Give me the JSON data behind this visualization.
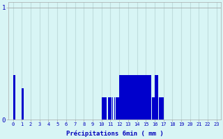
{
  "xlabel": "Précipitations 6min ( mm )",
  "background_color": "#d8f5f5",
  "bar_color": "#0000cc",
  "grid_color": "#c0dede",
  "ylim": [
    0,
    1.05
  ],
  "yticks": [
    0,
    1
  ],
  "xlim": [
    -0.5,
    23.5
  ],
  "values_6min": [
    0.4,
    0.4,
    0.4,
    0.0,
    0.0,
    0.0,
    0.0,
    0.0,
    0.0,
    0.0,
    0.28,
    0.28,
    0.0,
    0.0,
    0.0,
    0.0,
    0.0,
    0.0,
    0.0,
    0.0,
    0.0,
    0.0,
    0.0,
    0.0,
    0.0,
    0.0,
    0.0,
    0.0,
    0.0,
    0.0,
    0.0,
    0.0,
    0.0,
    0.0,
    0.0,
    0.0,
    0.0,
    0.0,
    0.0,
    0.0,
    0.0,
    0.0,
    0.0,
    0.0,
    0.0,
    0.0,
    0.0,
    0.0,
    0.0,
    0.0,
    0.0,
    0.0,
    0.0,
    0.0,
    0.0,
    0.0,
    0.0,
    0.0,
    0.0,
    0.0,
    0.0,
    0.0,
    0.0,
    0.0,
    0.0,
    0.0,
    0.0,
    0.0,
    0.0,
    0.0,
    0.0,
    0.0,
    0.0,
    0.0,
    0.0,
    0.0,
    0.0,
    0.0,
    0.0,
    0.0,
    0.0,
    0.0,
    0.0,
    0.0,
    0.0,
    0.0,
    0.0,
    0.0,
    0.0,
    0.0,
    0.0,
    0.0,
    0.0,
    0.0,
    0.0,
    0.0,
    0.0,
    0.0,
    0.0,
    0.0,
    0.2,
    0.2,
    0.2,
    0.2,
    0.2,
    0.2,
    0.0,
    0.2,
    0.2,
    0.2,
    0.2,
    0.0,
    0.2,
    0.0,
    0.2,
    0.0,
    0.2,
    0.2,
    0.2,
    0.2,
    0.4,
    0.4,
    0.4,
    0.4,
    0.4,
    0.4,
    0.4,
    0.4,
    0.4,
    0.4,
    0.4,
    0.4,
    0.4,
    0.4,
    0.4,
    0.4,
    0.4,
    0.4,
    0.4,
    0.4,
    0.4,
    0.4,
    0.4,
    0.4,
    0.4,
    0.4,
    0.4,
    0.4,
    0.4,
    0.4,
    0.4,
    0.4,
    0.4,
    0.4,
    0.4,
    0.4,
    0.0,
    0.2,
    0.2,
    0.2,
    0.4,
    0.4,
    0.4,
    0.4,
    0.0,
    0.2,
    0.2,
    0.2,
    0.2,
    0.2,
    0.0,
    0.0,
    0.0,
    0.0,
    0.0,
    0.0,
    0.0,
    0.0,
    0.0,
    0.0,
    0.0,
    0.0,
    0.0,
    0.0,
    0.0,
    0.0,
    0.0,
    0.0,
    0.0,
    0.0,
    0.0,
    0.0,
    0.0,
    0.0,
    0.0,
    0.0,
    0.0,
    0.0,
    0.0,
    0.0,
    0.0,
    0.0,
    0.0,
    0.0,
    0.0,
    0.0,
    0.0,
    0.0,
    0.0,
    0.0,
    0.0,
    0.0,
    0.0,
    0.0,
    0.0,
    0.0,
    0.0,
    0.0,
    0.0,
    0.0,
    0.0,
    0.0,
    0.0,
    0.0,
    0.0,
    0.0,
    0.0,
    0.0,
    0.0,
    0.0,
    0.0,
    0.0,
    0.0,
    0.0,
    0.0,
    0.0,
    0.0,
    0.0,
    0.0,
    0.0
  ]
}
